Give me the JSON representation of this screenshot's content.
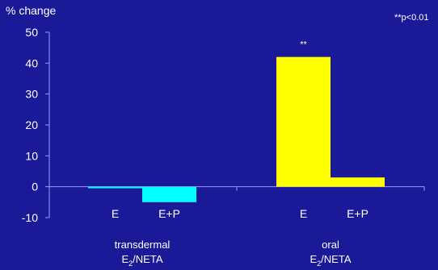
{
  "chart_data": {
    "type": "bar",
    "ylabel": "% change",
    "significance_note": "**p<0.01",
    "ylim": [
      -10,
      50
    ],
    "yticks": [
      "50",
      "40",
      "30",
      "20",
      "10",
      "0",
      "-10"
    ],
    "ytick_values": [
      50,
      40,
      30,
      20,
      10,
      0,
      -10
    ],
    "grid": false,
    "groups": [
      {
        "label_line1": "transdermal",
        "label_line2_main": "E",
        "label_line2_sub": "2",
        "label_line2_rest": "/NETA",
        "bars": [
          {
            "category": "E",
            "value": -0.5,
            "color": "#00ffff",
            "annotation": ""
          },
          {
            "category": "E+P",
            "value": -5,
            "color": "#00ffff",
            "annotation": ""
          }
        ]
      },
      {
        "label_line1": "oral",
        "label_line2_main": "E",
        "label_line2_sub": "2",
        "label_line2_rest": "/NETA",
        "bars": [
          {
            "category": "E",
            "value": 42,
            "color": "#ffff00",
            "annotation": "**"
          },
          {
            "category": "E+P",
            "value": 3,
            "color": "#ffff00",
            "annotation": ""
          }
        ]
      }
    ]
  },
  "colors": {
    "background": "#1a1a99",
    "axis": "#9999ff",
    "text": "#ffffff"
  }
}
